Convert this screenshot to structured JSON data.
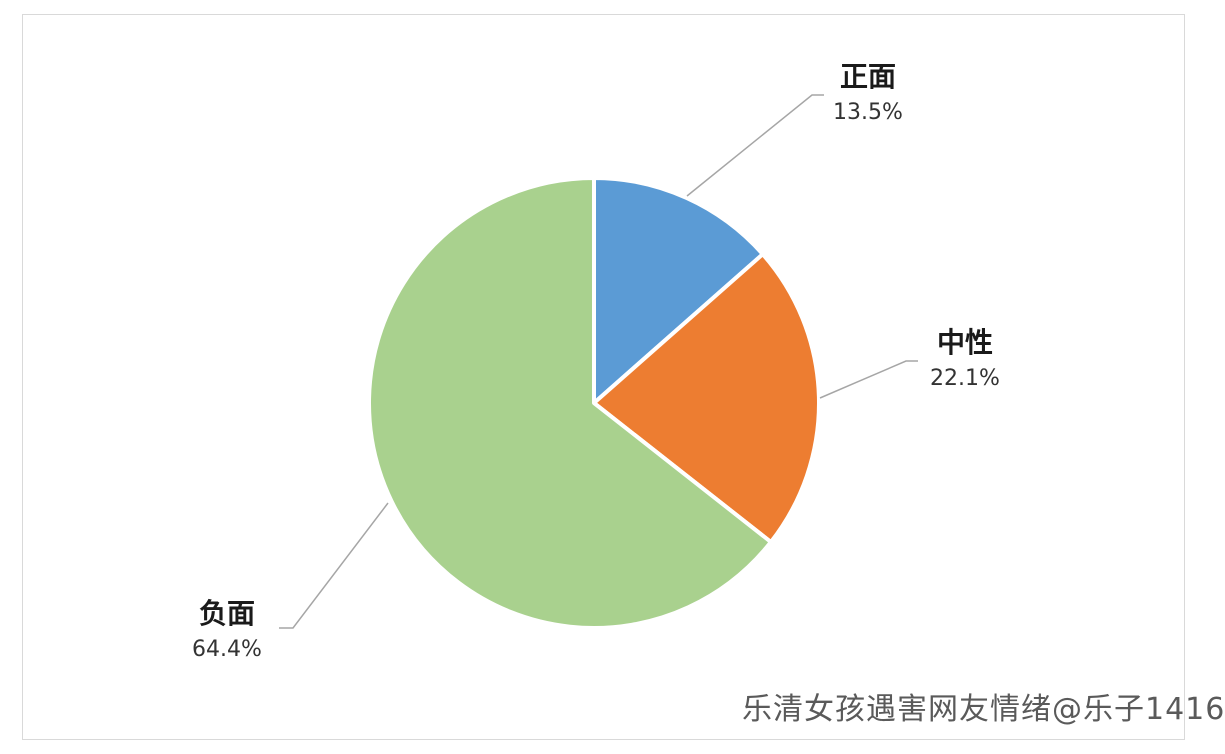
{
  "chart_data": {
    "type": "pie",
    "categories": [
      "正面",
      "中性",
      "负面"
    ],
    "values": [
      13.5,
      22.1,
      64.4
    ],
    "value_labels": [
      "13.5%",
      "22.1%",
      "64.4%"
    ],
    "colors": [
      "#5b9bd5",
      "#ed7d31",
      "#a9d18e"
    ],
    "title": "",
    "legend": "none",
    "label_placement": "outside with leader lines"
  },
  "watermark": "乐清女孩遇害网友情绪",
  "watermark_overlay": "@乐子1416"
}
